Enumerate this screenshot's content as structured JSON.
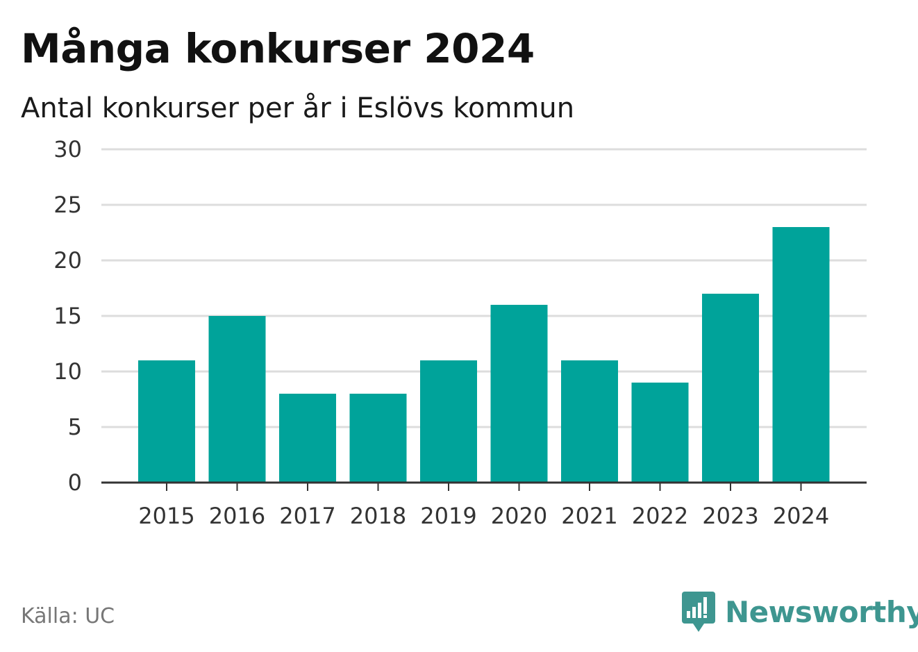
{
  "title": "Många konkurser 2024",
  "subtitle": "Antal konkurser per år i Eslövs kommun",
  "source": "Källa: UC",
  "brand": "Newsworthy",
  "colors": {
    "bar": "#00a39a",
    "grid": "#dddddd",
    "axis": "#333333",
    "brand": "#3e9690"
  },
  "chart_data": {
    "type": "bar",
    "title": "Många konkurser 2024",
    "subtitle": "Antal konkurser per år i Eslövs kommun",
    "categories": [
      "2015",
      "2016",
      "2017",
      "2018",
      "2019",
      "2020",
      "2021",
      "2022",
      "2023",
      "2024"
    ],
    "values": [
      11,
      15,
      8,
      8,
      11,
      16,
      11,
      9,
      17,
      23
    ],
    "xlabel": "",
    "ylabel": "",
    "ylim": [
      0,
      30
    ],
    "yticks": [
      "0",
      "5",
      "10",
      "15",
      "20",
      "25",
      "30"
    ],
    "grid": true,
    "legend": "none"
  }
}
